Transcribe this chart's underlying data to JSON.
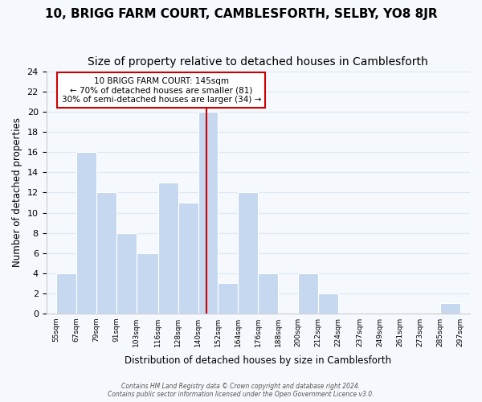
{
  "title": "10, BRIGG FARM COURT, CAMBLESFORTH, SELBY, YO8 8JR",
  "subtitle": "Size of property relative to detached houses in Camblesforth",
  "xlabel": "Distribution of detached houses by size in Camblesforth",
  "ylabel": "Number of detached properties",
  "bar_edges": [
    55,
    67,
    79,
    91,
    103,
    116,
    128,
    140,
    152,
    164,
    176,
    188,
    200,
    212,
    224,
    237,
    249,
    261,
    273,
    285,
    297
  ],
  "bar_heights": [
    4,
    16,
    12,
    8,
    6,
    13,
    11,
    20,
    3,
    12,
    4,
    0,
    4,
    2,
    0,
    0,
    0,
    0,
    0,
    1
  ],
  "bar_color": "#c5d8f0",
  "bar_edge_color": "#ffffff",
  "grid_color": "#dce8f5",
  "property_line_x": 145,
  "property_line_color": "#cc0000",
  "annotation_text": "10 BRIGG FARM COURT: 145sqm\n← 70% of detached houses are smaller (81)\n30% of semi-detached houses are larger (34) →",
  "annotation_box_color": "#ffffff",
  "annotation_box_edge": "#cc0000",
  "ylim": [
    0,
    24
  ],
  "yticks": [
    0,
    2,
    4,
    6,
    8,
    10,
    12,
    14,
    16,
    18,
    20,
    22,
    24
  ],
  "tick_labels": [
    "55sqm",
    "67sqm",
    "79sqm",
    "91sqm",
    "103sqm",
    "116sqm",
    "128sqm",
    "140sqm",
    "152sqm",
    "164sqm",
    "176sqm",
    "188sqm",
    "200sqm",
    "212sqm",
    "224sqm",
    "237sqm",
    "249sqm",
    "261sqm",
    "273sqm",
    "285sqm",
    "297sqm"
  ],
  "footer_line1": "Contains HM Land Registry data © Crown copyright and database right 2024.",
  "footer_line2": "Contains public sector information licensed under the Open Government Licence v3.0.",
  "background_color": "#f5f8fd",
  "title_fontsize": 11,
  "subtitle_fontsize": 10
}
